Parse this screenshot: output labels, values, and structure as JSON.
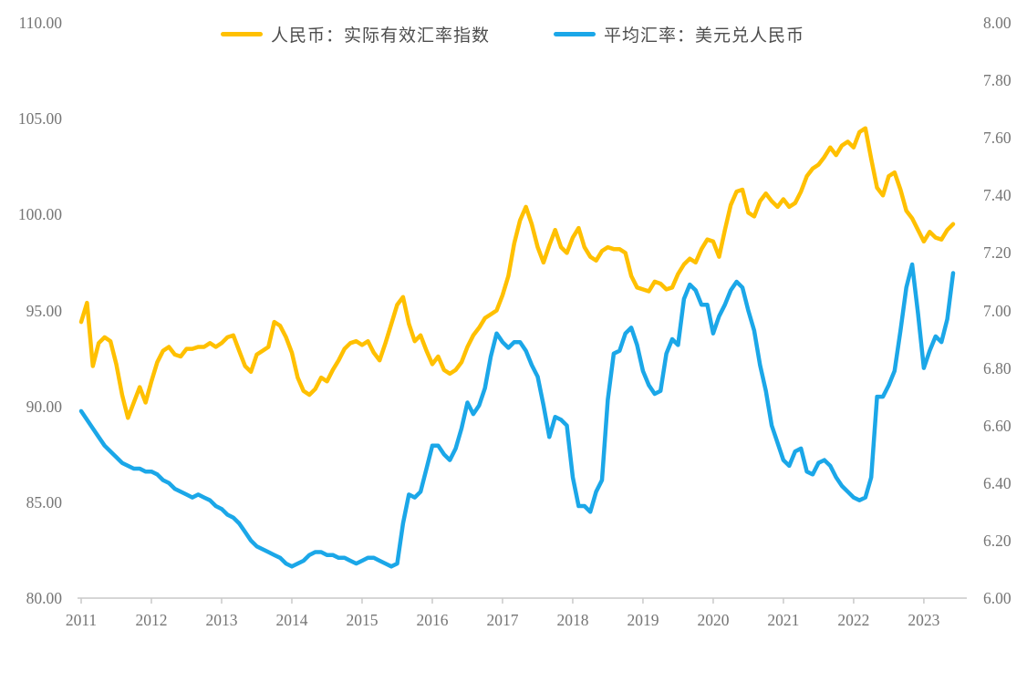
{
  "chart_data": {
    "type": "line",
    "title": "",
    "frequency": "monthly",
    "x_range": [
      "2011-01",
      "2023-06"
    ],
    "legend_position": "top",
    "grid": false,
    "axis_color": "#c9c9c9",
    "label_color": "#757575",
    "x_axis": {
      "labels": [
        "2011",
        "2012",
        "2013",
        "2014",
        "2015",
        "2016",
        "2017",
        "2018",
        "2019",
        "2020",
        "2021",
        "2022",
        "2023"
      ]
    },
    "left_axis": {
      "min": 80,
      "max": 110,
      "step": 5,
      "labels": [
        "110.00",
        "105.00",
        "100.00",
        "95.00",
        "90.00",
        "85.00",
        "80.00"
      ],
      "values": [
        110,
        105,
        100,
        95,
        90,
        85,
        80
      ]
    },
    "right_axis": {
      "min": 6.0,
      "max": 8.0,
      "step": 0.2,
      "labels": [
        "8.00",
        "7.80",
        "7.60",
        "7.40",
        "7.20",
        "7.00",
        "6.80",
        "6.60",
        "6.40",
        "6.20",
        "6.00"
      ],
      "values": [
        8.0,
        7.8,
        7.6,
        7.4,
        7.2,
        7.0,
        6.8,
        6.6,
        6.4,
        6.2,
        6.0
      ]
    },
    "series": [
      {
        "name": "人民币：实际有效汇率指数",
        "axis": "left",
        "color": "#FFC000",
        "values": [
          94.4,
          95.4,
          92.1,
          93.3,
          93.6,
          93.4,
          92.2,
          90.6,
          89.4,
          90.2,
          91.0,
          90.2,
          91.3,
          92.3,
          92.9,
          93.1,
          92.7,
          92.6,
          93.0,
          93.0,
          93.1,
          93.1,
          93.3,
          93.1,
          93.3,
          93.6,
          93.7,
          92.9,
          92.1,
          91.8,
          92.7,
          92.9,
          93.1,
          94.4,
          94.2,
          93.6,
          92.8,
          91.5,
          90.8,
          90.6,
          90.9,
          91.5,
          91.3,
          91.9,
          92.4,
          93.0,
          93.3,
          93.4,
          93.2,
          93.4,
          92.8,
          92.4,
          93.3,
          94.3,
          95.3,
          95.7,
          94.3,
          93.4,
          93.7,
          92.9,
          92.2,
          92.6,
          91.9,
          91.7,
          91.9,
          92.3,
          93.1,
          93.7,
          94.1,
          94.6,
          94.8,
          95.0,
          95.8,
          96.8,
          98.5,
          99.7,
          100.4,
          99.5,
          98.3,
          97.5,
          98.4,
          99.2,
          98.3,
          98.0,
          98.8,
          99.3,
          98.3,
          97.8,
          97.6,
          98.1,
          98.3,
          98.2,
          98.2,
          98.0,
          96.8,
          96.2,
          96.1,
          96.0,
          96.5,
          96.4,
          96.1,
          96.2,
          96.9,
          97.4,
          97.7,
          97.5,
          98.2,
          98.7,
          98.6,
          97.8,
          99.2,
          100.5,
          101.2,
          101.3,
          100.1,
          99.9,
          100.7,
          101.1,
          100.7,
          100.4,
          100.8,
          100.4,
          100.6,
          101.2,
          102.0,
          102.4,
          102.6,
          103.0,
          103.5,
          103.1,
          103.6,
          103.8,
          103.5,
          104.3,
          104.5,
          102.9,
          101.4,
          101.0,
          102.0,
          102.2,
          101.3,
          100.2,
          99.8,
          99.2,
          98.6,
          99.1,
          98.8,
          98.7,
          99.2,
          99.5
        ]
      },
      {
        "name": "平均汇率：美元兑人民币",
        "axis": "right",
        "color": "#1BA7E8",
        "values": [
          6.65,
          6.62,
          6.59,
          6.56,
          6.53,
          6.51,
          6.49,
          6.47,
          6.46,
          6.45,
          6.45,
          6.44,
          6.44,
          6.43,
          6.41,
          6.4,
          6.38,
          6.37,
          6.36,
          6.35,
          6.36,
          6.35,
          6.34,
          6.32,
          6.31,
          6.29,
          6.28,
          6.26,
          6.23,
          6.2,
          6.18,
          6.17,
          6.16,
          6.15,
          6.14,
          6.12,
          6.11,
          6.12,
          6.13,
          6.15,
          6.16,
          6.16,
          6.15,
          6.15,
          6.14,
          6.14,
          6.13,
          6.12,
          6.13,
          6.14,
          6.14,
          6.13,
          6.12,
          6.11,
          6.12,
          6.26,
          6.36,
          6.35,
          6.37,
          6.45,
          6.53,
          6.53,
          6.5,
          6.48,
          6.52,
          6.59,
          6.68,
          6.64,
          6.67,
          6.73,
          6.84,
          6.92,
          6.89,
          6.87,
          6.89,
          6.89,
          6.86,
          6.81,
          6.77,
          6.67,
          6.56,
          6.63,
          6.62,
          6.6,
          6.42,
          6.32,
          6.32,
          6.3,
          6.37,
          6.41,
          6.69,
          6.85,
          6.86,
          6.92,
          6.94,
          6.88,
          6.79,
          6.74,
          6.71,
          6.72,
          6.85,
          6.9,
          6.88,
          7.04,
          7.09,
          7.07,
          7.02,
          7.02,
          6.92,
          6.98,
          7.02,
          7.07,
          7.1,
          7.08,
          7.0,
          6.93,
          6.81,
          6.72,
          6.6,
          6.54,
          6.48,
          6.46,
          6.51,
          6.52,
          6.44,
          6.43,
          6.47,
          6.48,
          6.46,
          6.42,
          6.39,
          6.37,
          6.35,
          6.34,
          6.35,
          6.42,
          6.7,
          6.7,
          6.74,
          6.79,
          6.93,
          7.08,
          7.16,
          6.99,
          6.8,
          6.86,
          6.91,
          6.89,
          6.97,
          7.13
        ]
      }
    ]
  }
}
